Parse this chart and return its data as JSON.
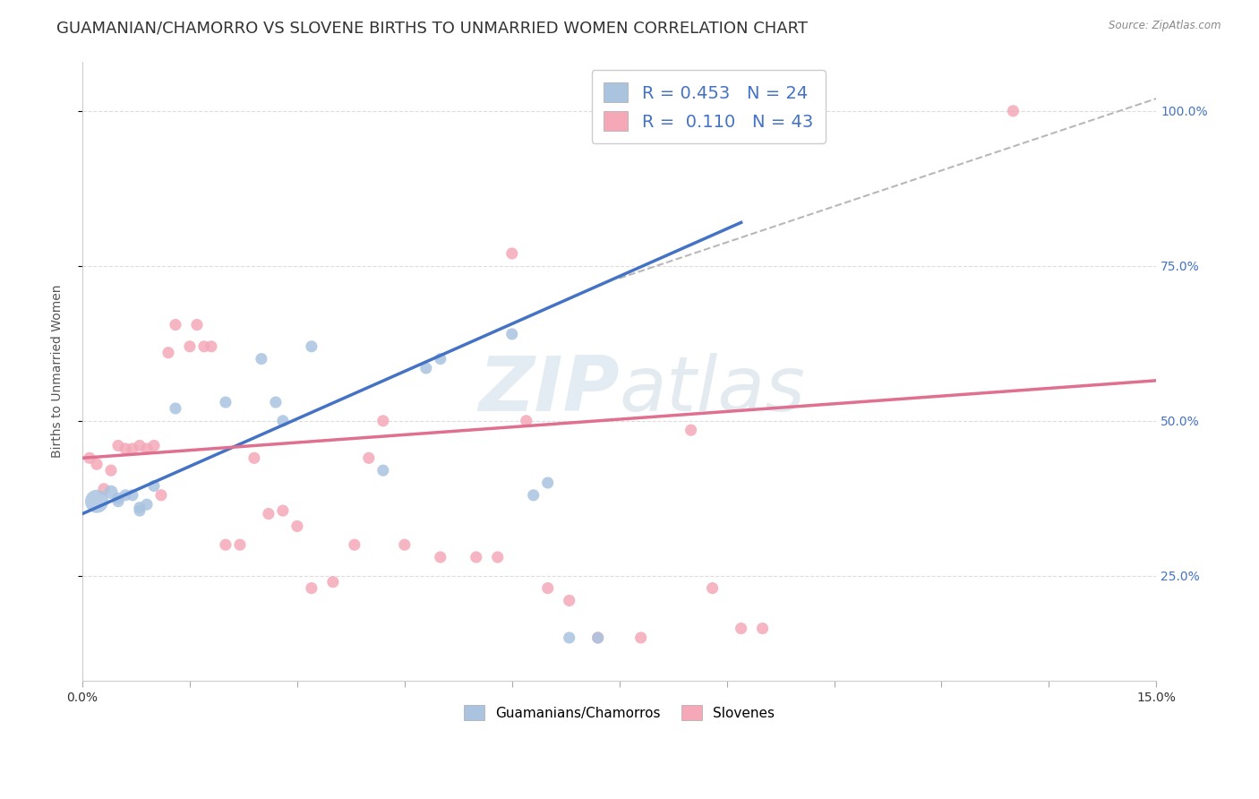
{
  "title": "GUAMANIAN/CHAMORRO VS SLOVENE BIRTHS TO UNMARRIED WOMEN CORRELATION CHART",
  "source": "Source: ZipAtlas.com",
  "ylabel": "Births to Unmarried Women",
  "y_tick_vals": [
    0.25,
    0.5,
    0.75,
    1.0
  ],
  "x_range": [
    0.0,
    0.15
  ],
  "y_range": [
    0.08,
    1.08
  ],
  "legend_blue_R": "0.453",
  "legend_blue_N": "24",
  "legend_pink_R": "0.110",
  "legend_pink_N": "43",
  "legend_label_blue": "Guamanians/Chamorros",
  "legend_label_pink": "Slovenes",
  "blue_color": "#aac4e0",
  "pink_color": "#f4a8b8",
  "blue_line_color": "#4472c4",
  "pink_line_color": "#e07090",
  "trendline_color": "#b8b8b8",
  "blue_x": [
    0.002,
    0.004,
    0.005,
    0.005,
    0.006,
    0.007,
    0.008,
    0.008,
    0.009,
    0.01,
    0.013,
    0.02,
    0.025,
    0.027,
    0.028,
    0.032,
    0.042,
    0.048,
    0.05,
    0.06,
    0.063,
    0.065,
    0.068,
    0.072
  ],
  "blue_y": [
    0.37,
    0.385,
    0.375,
    0.37,
    0.38,
    0.38,
    0.355,
    0.36,
    0.365,
    0.395,
    0.52,
    0.53,
    0.6,
    0.53,
    0.5,
    0.62,
    0.42,
    0.585,
    0.6,
    0.64,
    0.38,
    0.4,
    0.15,
    0.15
  ],
  "blue_sizes": [
    350,
    120,
    90,
    90,
    90,
    90,
    90,
    90,
    90,
    90,
    90,
    90,
    90,
    90,
    90,
    90,
    90,
    90,
    90,
    90,
    90,
    90,
    90,
    90
  ],
  "pink_x": [
    0.001,
    0.002,
    0.003,
    0.004,
    0.005,
    0.006,
    0.007,
    0.008,
    0.009,
    0.01,
    0.011,
    0.012,
    0.013,
    0.015,
    0.016,
    0.017,
    0.018,
    0.02,
    0.022,
    0.024,
    0.026,
    0.028,
    0.03,
    0.032,
    0.035,
    0.038,
    0.04,
    0.042,
    0.045,
    0.05,
    0.055,
    0.058,
    0.06,
    0.062,
    0.065,
    0.068,
    0.072,
    0.078,
    0.085,
    0.088,
    0.092,
    0.095,
    0.13
  ],
  "pink_y": [
    0.44,
    0.43,
    0.39,
    0.42,
    0.46,
    0.455,
    0.455,
    0.46,
    0.455,
    0.46,
    0.38,
    0.61,
    0.655,
    0.62,
    0.655,
    0.62,
    0.62,
    0.3,
    0.3,
    0.44,
    0.35,
    0.355,
    0.33,
    0.23,
    0.24,
    0.3,
    0.44,
    0.5,
    0.3,
    0.28,
    0.28,
    0.28,
    0.77,
    0.5,
    0.23,
    0.21,
    0.15,
    0.15,
    0.485,
    0.23,
    0.165,
    0.165,
    1.0
  ],
  "pink_sizes": [
    90,
    90,
    90,
    90,
    90,
    90,
    90,
    90,
    90,
    90,
    90,
    90,
    90,
    90,
    90,
    90,
    90,
    90,
    90,
    90,
    90,
    90,
    90,
    90,
    90,
    90,
    90,
    90,
    90,
    90,
    90,
    90,
    90,
    90,
    90,
    90,
    90,
    90,
    90,
    90,
    90,
    90,
    90
  ],
  "blue_trend_x0": 0.0,
  "blue_trend_x1": 0.092,
  "blue_trend_y0": 0.35,
  "blue_trend_y1": 0.82,
  "pink_trend_x0": 0.0,
  "pink_trend_x1": 0.15,
  "pink_trend_y0": 0.44,
  "pink_trend_y1": 0.565,
  "gray_trend_x0": 0.075,
  "gray_trend_x1": 0.15,
  "gray_trend_y0": 0.73,
  "gray_trend_y1": 1.02,
  "background_color": "#ffffff",
  "grid_color": "#dddddd",
  "right_axis_color": "#4472c4",
  "title_fontsize": 13,
  "axis_label_fontsize": 10,
  "tick_fontsize": 10
}
